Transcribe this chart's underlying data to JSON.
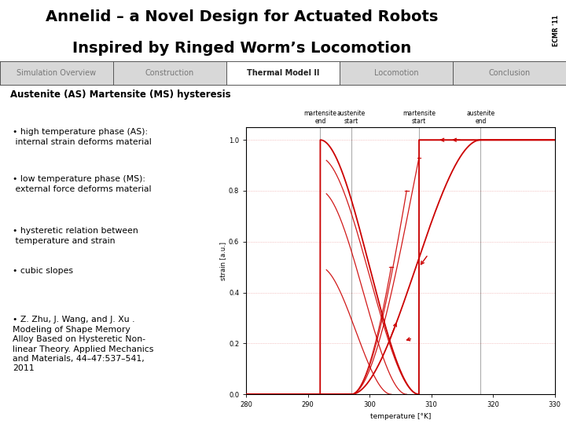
{
  "title_line1": "Annelid – a Novel Design for Actuated Robots",
  "title_line2": "Inspired by Ringed Worm’s Locomotion",
  "title_fontsize": 14,
  "nav_items": [
    "Simulation Overview",
    "Construction",
    "Thermal Model II",
    "Locomotion",
    "Conclusion"
  ],
  "nav_active": "Thermal Model II",
  "section_title": "Austenite (AS) Martensite (MS) hysteresis",
  "bullets": [
    "high temperature phase (AS):\n internal strain deforms material",
    "low temperature phase (MS):\n external force deforms material",
    "hysteretic relation between\n temperature and strain",
    "cubic slopes",
    "Z. Zhu, J. Wang, and J. Xu .\nModeling of Shape Memory\nAlloy Based on Hysteretic Non-\nlinear Theory. Applied Mechanics\nand Materials, 44–47:537–541,\n2011"
  ],
  "bg_color": "#ffffff",
  "logo_bg": "#c8a830",
  "plot_line_color": "#cc0000",
  "plot_bg": "#ffffff",
  "vline_color": "#999999",
  "grid_color": "#cc0000",
  "xmin": 280,
  "xmax": 330,
  "ymin": 0,
  "ymax": 1.05,
  "xlabel": "temperature [°K]",
  "ylabel": "strain [a.u.]",
  "xticks": [
    280,
    290,
    300,
    310,
    320,
    330
  ],
  "yticks": [
    0,
    0.2,
    0.4,
    0.6,
    0.8,
    1
  ],
  "vlines": [
    292,
    297,
    308,
    318
  ],
  "vline_labels": [
    "martensite\nend",
    "austenite\nstart",
    "martensite\nstart",
    "austenite\nend"
  ],
  "Mf": 292,
  "As": 297,
  "Ms": 308,
  "Af": 318
}
